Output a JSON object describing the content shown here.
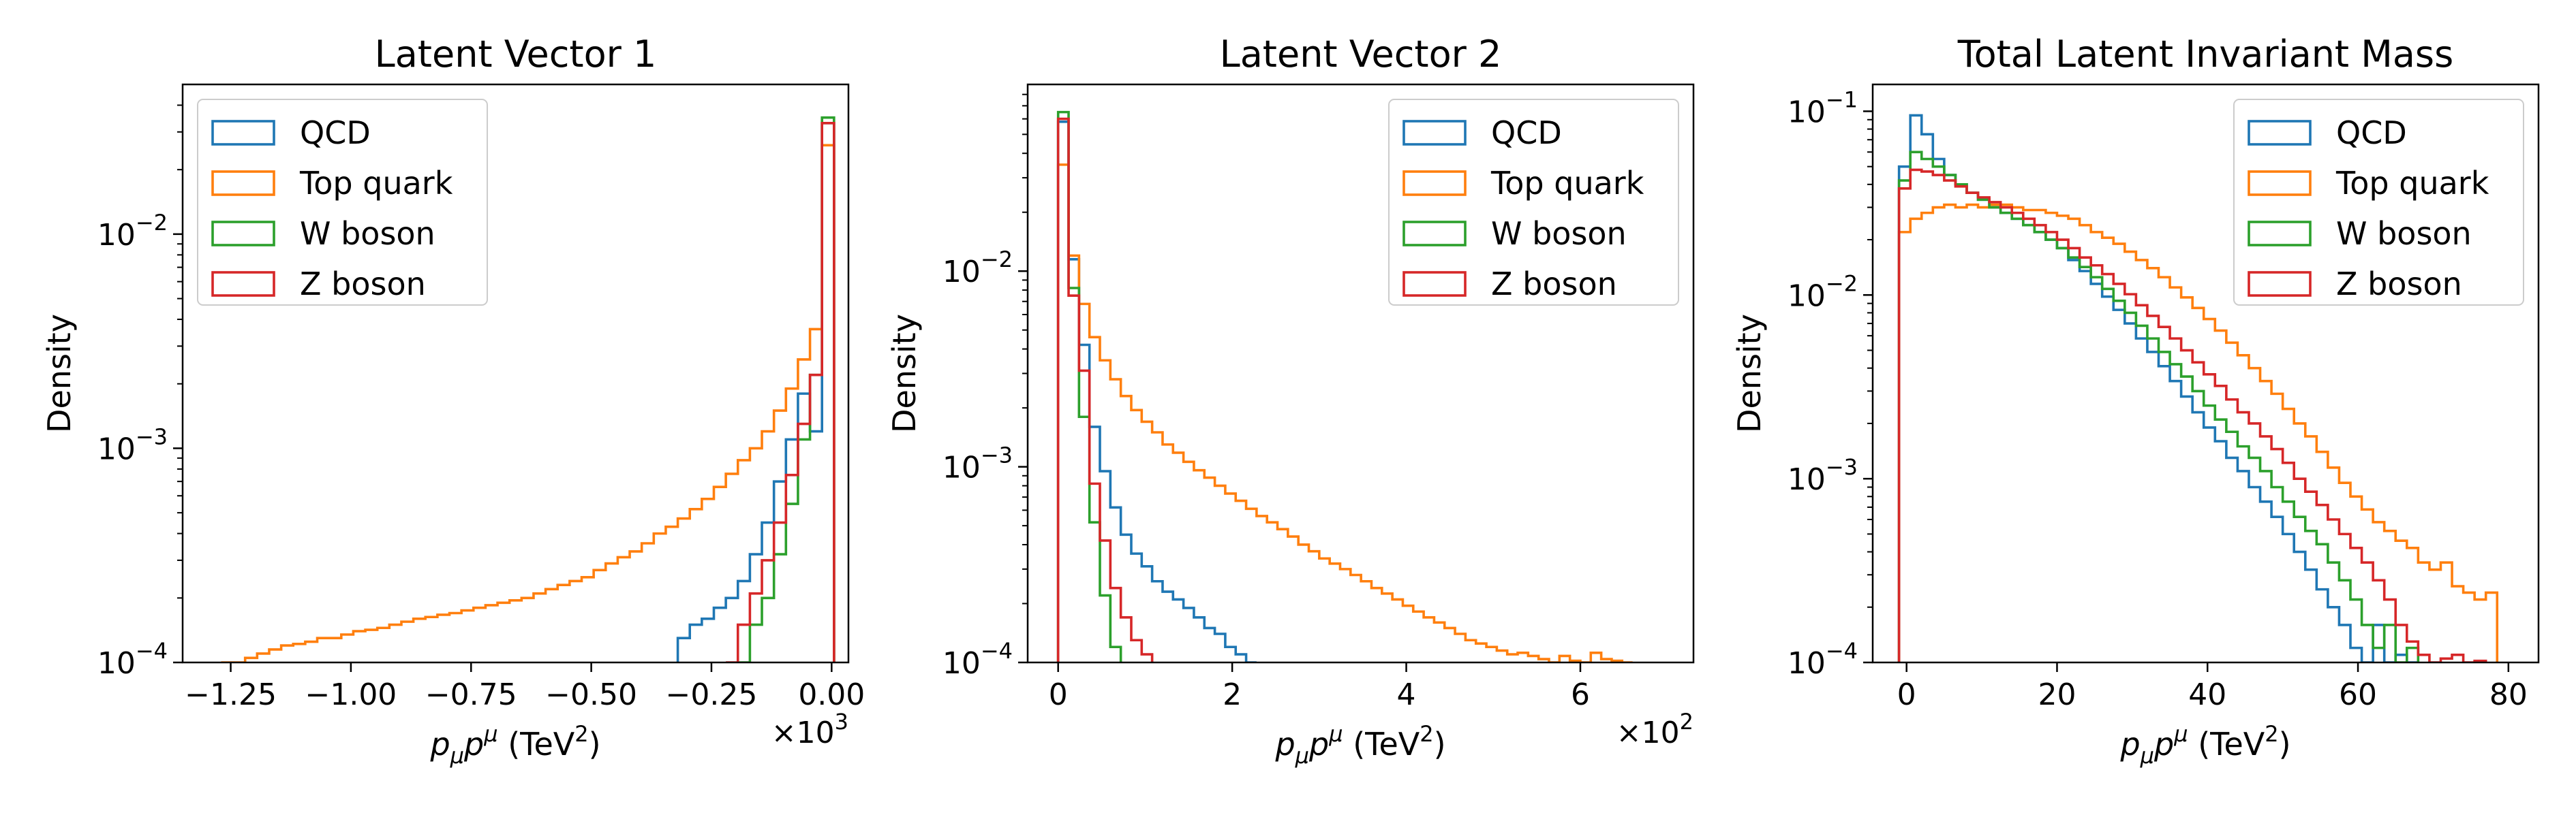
{
  "colors": {
    "QCD": "#1f77b4",
    "Top quark": "#ff7f0e",
    "W boson": "#2ca02c",
    "Z boson": "#d62728"
  },
  "chart_data": [
    {
      "type": "histogram",
      "title": "Latent Vector 1",
      "xlabel": "pμpμ (TeV²)",
      "xlabel_parts": {
        "p": "p",
        "sub": "μ",
        "p2": "p",
        "sup": "μ",
        "unit": " (TeV",
        "unit_sup": "2",
        "close": ")"
      },
      "ylabel": "Density",
      "y_scale": "log",
      "xlim": [
        -1.35,
        0.035
      ],
      "ylim": [
        0.0001,
        0.05
      ],
      "x_multiplier": "×10",
      "x_multiplier_exp": "3",
      "x_ticks": [
        -1.25,
        -1.0,
        -0.75,
        -0.5,
        -0.25,
        0.0
      ],
      "x_tick_labels": [
        "−1.25",
        "−1.00",
        "−0.75",
        "−0.50",
        "−0.25",
        "0.00"
      ],
      "y_ticks": [
        0.0001,
        0.001,
        0.01
      ],
      "y_tick_labels": [
        [
          "10",
          "−4"
        ],
        [
          "10",
          "−3"
        ],
        [
          "10",
          "−2"
        ]
      ],
      "legend_position": "top-left",
      "series": [
        {
          "name": "QCD",
          "edges": [
            -0.32,
            -0.295,
            -0.27,
            -0.245,
            -0.22,
            -0.195,
            -0.17,
            -0.145,
            -0.12,
            -0.095,
            -0.07,
            -0.045,
            -0.02,
            0.005
          ],
          "values": [
            0.00013,
            0.00015,
            0.00016,
            0.00018,
            0.0002,
            0.00024,
            0.00032,
            0.00045,
            0.0007,
            0.0011,
            0.0018,
            0.0012,
            0.033
          ]
        },
        {
          "name": "Top quark",
          "edges": [
            -1.27,
            -1.245,
            -1.22,
            -1.195,
            -1.17,
            -1.145,
            -1.12,
            -1.095,
            -1.07,
            -1.045,
            -1.02,
            -0.995,
            -0.97,
            -0.945,
            -0.92,
            -0.895,
            -0.87,
            -0.845,
            -0.82,
            -0.795,
            -0.77,
            -0.745,
            -0.72,
            -0.695,
            -0.67,
            -0.645,
            -0.62,
            -0.595,
            -0.57,
            -0.545,
            -0.52,
            -0.495,
            -0.47,
            -0.445,
            -0.42,
            -0.395,
            -0.37,
            -0.345,
            -0.32,
            -0.295,
            -0.27,
            -0.245,
            -0.22,
            -0.195,
            -0.17,
            -0.145,
            -0.12,
            -0.095,
            -0.07,
            -0.045,
            -0.02,
            0.005
          ],
          "values": [
            0.0001,
            0.0001,
            0.000105,
            0.00011,
            0.000115,
            0.00012,
            0.000122,
            0.000125,
            0.00013,
            0.00013,
            0.000135,
            0.00014,
            0.000142,
            0.000145,
            0.00015,
            0.000155,
            0.00016,
            0.000163,
            0.000167,
            0.00017,
            0.000175,
            0.00018,
            0.000185,
            0.00019,
            0.000195,
            0.0002,
            0.00021,
            0.00022,
            0.00023,
            0.00024,
            0.00025,
            0.00027,
            0.00029,
            0.00031,
            0.00033,
            0.00036,
            0.0004,
            0.00043,
            0.00047,
            0.00052,
            0.00058,
            0.00066,
            0.00076,
            0.00088,
            0.001,
            0.0012,
            0.0015,
            0.0019,
            0.0026,
            0.0036,
            0.026
          ]
        },
        {
          "name": "W boson",
          "edges": [
            -0.195,
            -0.17,
            -0.145,
            -0.12,
            -0.095,
            -0.07,
            -0.045,
            -0.02,
            0.005
          ],
          "values": [
            0.0001,
            0.00015,
            0.0002,
            0.00032,
            0.00055,
            0.0011,
            0.0022,
            0.035
          ]
        },
        {
          "name": "Z boson",
          "edges": [
            -0.22,
            -0.195,
            -0.17,
            -0.145,
            -0.12,
            -0.095,
            -0.07,
            -0.045,
            -0.02,
            0.005
          ],
          "values": [
            0.0001,
            0.00015,
            0.00021,
            0.0003,
            0.00045,
            0.00075,
            0.0013,
            0.0022,
            0.033
          ]
        }
      ]
    },
    {
      "type": "histogram",
      "title": "Latent Vector 2",
      "xlabel": "pμpμ (TeV²)",
      "xlabel_parts": {
        "p": "p",
        "sub": "μ",
        "p2": "p",
        "sup": "μ",
        "unit": " (TeV",
        "unit_sup": "2",
        "close": ")"
      },
      "ylabel": "Density",
      "y_scale": "log",
      "xlim": [
        -0.35,
        7.3
      ],
      "ylim": [
        0.0001,
        0.09
      ],
      "x_multiplier": "×10",
      "x_multiplier_exp": "2",
      "x_ticks": [
        0,
        2,
        4,
        6
      ],
      "x_tick_labels": [
        "0",
        "2",
        "4",
        "6"
      ],
      "y_ticks": [
        0.001,
        0.01
      ],
      "y_tick_labels": [
        [
          "10",
          "−3"
        ],
        [
          "10",
          "−2"
        ]
      ],
      "y_floor_label": [
        "10",
        "−4"
      ],
      "legend_position": "top-right",
      "series": [
        {
          "name": "QCD",
          "edges": [
            0,
            0.12,
            0.24,
            0.36,
            0.48,
            0.6,
            0.72,
            0.84,
            0.96,
            1.08,
            1.2,
            1.32,
            1.44,
            1.56,
            1.68,
            1.8,
            1.92,
            2.04,
            2.16,
            2.28
          ],
          "values": [
            0.058,
            0.0115,
            0.0042,
            0.0016,
            0.00095,
            0.00062,
            0.00045,
            0.00036,
            0.00031,
            0.00026,
            0.00023,
            0.00021,
            0.00019,
            0.00017,
            0.00015,
            0.00014,
            0.00012,
            0.00011,
            0.0001
          ]
        },
        {
          "name": "Top quark",
          "edges": [
            0,
            0.12,
            0.24,
            0.36,
            0.48,
            0.6,
            0.72,
            0.84,
            0.96,
            1.08,
            1.2,
            1.32,
            1.44,
            1.56,
            1.68,
            1.8,
            1.92,
            2.04,
            2.16,
            2.28,
            2.4,
            2.52,
            2.64,
            2.76,
            2.88,
            3.0,
            3.12,
            3.24,
            3.36,
            3.48,
            3.6,
            3.72,
            3.84,
            3.96,
            4.08,
            4.2,
            4.32,
            4.44,
            4.56,
            4.68,
            4.8,
            4.92,
            5.04,
            5.16,
            5.28,
            5.4,
            5.52,
            5.64,
            5.76,
            5.88,
            6.0,
            6.12,
            6.24,
            6.36,
            6.48,
            6.6
          ],
          "values": [
            0.035,
            0.012,
            0.0068,
            0.0046,
            0.0035,
            0.0028,
            0.0023,
            0.00195,
            0.0017,
            0.0015,
            0.0013,
            0.00118,
            0.00106,
            0.00096,
            0.00088,
            0.0008,
            0.00073,
            0.00067,
            0.00061,
            0.00056,
            0.00052,
            0.00048,
            0.00044,
            0.0004,
            0.00037,
            0.00034,
            0.00032,
            0.0003,
            0.00028,
            0.00026,
            0.00024,
            0.000225,
            0.00021,
            0.000195,
            0.000182,
            0.00017,
            0.00016,
            0.00015,
            0.00014,
            0.00013,
            0.000125,
            0.00012,
            0.000115,
            0.00011,
            0.000112,
            0.000108,
            0.000104,
            0.0001,
            0.000108,
            0.000102,
            0.0001,
            0.000112,
            0.000104,
            0.000102,
            0.0001
          ]
        },
        {
          "name": "W boson",
          "edges": [
            0,
            0.12,
            0.24,
            0.36,
            0.48,
            0.6,
            0.72
          ],
          "values": [
            0.065,
            0.0082,
            0.0018,
            0.00052,
            0.00022,
            0.00012
          ]
        },
        {
          "name": "Z boson",
          "edges": [
            0,
            0.12,
            0.24,
            0.36,
            0.48,
            0.6,
            0.72,
            0.84,
            0.96,
            1.08
          ],
          "values": [
            0.06,
            0.0075,
            0.0031,
            0.00082,
            0.00042,
            0.00024,
            0.00017,
            0.00013,
            0.00011
          ]
        }
      ]
    },
    {
      "type": "histogram",
      "title": "Total Latent Invariant Mass",
      "xlabel": "pμpμ (TeV²)",
      "xlabel_parts": {
        "p": "p",
        "sub": "μ",
        "p2": "p",
        "sup": "μ",
        "unit": " (TeV",
        "unit_sup": "2",
        "close": ")"
      },
      "ylabel": "Density",
      "y_scale": "log",
      "xlim": [
        -4.5,
        84
      ],
      "ylim": [
        0.0001,
        0.14
      ],
      "x_multiplier": "",
      "x_multiplier_exp": "",
      "x_ticks": [
        0,
        20,
        40,
        60,
        80
      ],
      "x_tick_labels": [
        "0",
        "20",
        "40",
        "60",
        "80"
      ],
      "y_ticks": [
        0.0001,
        0.001,
        0.01,
        0.1
      ],
      "y_tick_labels": [
        [
          "10",
          "−4"
        ],
        [
          "10",
          "−3"
        ],
        [
          "10",
          "−2"
        ],
        [
          "10",
          "−1"
        ]
      ],
      "legend_position": "top-right",
      "series": [
        {
          "name": "QCD",
          "edges": [
            -1,
            0.5,
            2,
            3.5,
            5,
            6.5,
            8,
            9.5,
            11,
            12.5,
            14,
            15.5,
            17,
            18.5,
            20,
            21.5,
            23,
            24.5,
            26,
            27.5,
            29,
            30.5,
            32,
            33.5,
            35,
            36.5,
            38,
            39.5,
            41,
            42.5,
            44,
            45.5,
            47,
            48.5,
            50,
            51.5,
            53,
            54.5,
            56,
            57.5,
            59,
            60.5,
            62,
            63.5,
            65,
            66.5,
            68
          ],
          "values": [
            0.05,
            0.095,
            0.075,
            0.055,
            0.045,
            0.04,
            0.036,
            0.033,
            0.03,
            0.028,
            0.026,
            0.024,
            0.022,
            0.02,
            0.018,
            0.0155,
            0.0135,
            0.0115,
            0.0098,
            0.0083,
            0.007,
            0.0058,
            0.0049,
            0.0041,
            0.0034,
            0.0028,
            0.0023,
            0.0019,
            0.0016,
            0.0013,
            0.0011,
            0.0009,
            0.00075,
            0.00062,
            0.0005,
            0.0004,
            0.00032,
            0.00025,
            0.0002,
            0.00016,
            0.00012,
            0.0001,
            0.00016,
            0.0001,
            0.00011,
            0.0001
          ]
        },
        {
          "name": "Top quark",
          "edges": [
            -1,
            0.5,
            2,
            3.5,
            5,
            6.5,
            8,
            9.5,
            11,
            12.5,
            14,
            15.5,
            17,
            18.5,
            20,
            21.5,
            23,
            24.5,
            26,
            27.5,
            29,
            30.5,
            32,
            33.5,
            35,
            36.5,
            38,
            39.5,
            41,
            42.5,
            44,
            45.5,
            47,
            48.5,
            50,
            51.5,
            53,
            54.5,
            56,
            57.5,
            59,
            60.5,
            62,
            63.5,
            65,
            66.5,
            68,
            69.5,
            71,
            72.5,
            74,
            75.5,
            77,
            78.5
          ],
          "values": [
            0.022,
            0.026,
            0.028,
            0.03,
            0.031,
            0.03,
            0.031,
            0.03,
            0.031,
            0.031,
            0.03,
            0.029,
            0.029,
            0.028,
            0.027,
            0.026,
            0.024,
            0.022,
            0.0205,
            0.019,
            0.0172,
            0.0155,
            0.014,
            0.0125,
            0.011,
            0.0097,
            0.0085,
            0.0074,
            0.0064,
            0.0055,
            0.0047,
            0.004,
            0.0034,
            0.0029,
            0.0024,
            0.002,
            0.0017,
            0.0014,
            0.00115,
            0.00095,
            0.0008,
            0.00068,
            0.00058,
            0.00052,
            0.00046,
            0.00042,
            0.00035,
            0.00032,
            0.00035,
            0.00026,
            0.00024,
            0.00022,
            0.00024
          ]
        },
        {
          "name": "W boson",
          "edges": [
            -1,
            0.5,
            2,
            3.5,
            5,
            6.5,
            8,
            9.5,
            11,
            12.5,
            14,
            15.5,
            17,
            18.5,
            20,
            21.5,
            23,
            24.5,
            26,
            27.5,
            29,
            30.5,
            32,
            33.5,
            35,
            36.5,
            38,
            39.5,
            41,
            42.5,
            44,
            45.5,
            47,
            48.5,
            50,
            51.5,
            53,
            54.5,
            56,
            57.5,
            59,
            60.5,
            62,
            63.5,
            65,
            66.5,
            68
          ],
          "values": [
            0.042,
            0.06,
            0.055,
            0.05,
            0.045,
            0.04,
            0.036,
            0.033,
            0.03,
            0.028,
            0.026,
            0.024,
            0.022,
            0.02,
            0.018,
            0.016,
            0.0142,
            0.0125,
            0.0108,
            0.0093,
            0.008,
            0.0068,
            0.0058,
            0.0049,
            0.0042,
            0.0036,
            0.003,
            0.0025,
            0.0021,
            0.0018,
            0.0015,
            0.0013,
            0.0011,
            0.0009,
            0.00075,
            0.00062,
            0.00052,
            0.00044,
            0.00035,
            0.00028,
            0.00022,
            0.00016,
            0.00012,
            0.00016,
            0.0001,
            0.00012
          ]
        },
        {
          "name": "Z boson",
          "edges": [
            -1,
            0.5,
            2,
            3.5,
            5,
            6.5,
            8,
            9.5,
            11,
            12.5,
            14,
            15.5,
            17,
            18.5,
            20,
            21.5,
            23,
            24.5,
            26,
            27.5,
            29,
            30.5,
            32,
            33.5,
            35,
            36.5,
            38,
            39.5,
            41,
            42.5,
            44,
            45.5,
            47,
            48.5,
            50,
            51.5,
            53,
            54.5,
            56,
            57.5,
            59,
            60.5,
            62,
            63.5,
            65,
            66.5,
            68,
            69.5,
            71,
            72.5,
            74,
            75.5,
            77
          ],
          "values": [
            0.038,
            0.048,
            0.047,
            0.045,
            0.042,
            0.039,
            0.036,
            0.034,
            0.032,
            0.03,
            0.028,
            0.026,
            0.024,
            0.022,
            0.02,
            0.018,
            0.016,
            0.0145,
            0.013,
            0.0115,
            0.0101,
            0.0088,
            0.0077,
            0.0067,
            0.0058,
            0.005,
            0.0043,
            0.0037,
            0.0032,
            0.0027,
            0.0023,
            0.002,
            0.0017,
            0.00145,
            0.00122,
            0.001,
            0.00085,
            0.00072,
            0.0006,
            0.0005,
            0.00042,
            0.00035,
            0.00028,
            0.00022,
            0.00016,
            0.00013,
            0.00011,
            0.0001,
            0.000105,
            0.00011,
            0.0001,
            0.000102
          ]
        }
      ]
    }
  ]
}
